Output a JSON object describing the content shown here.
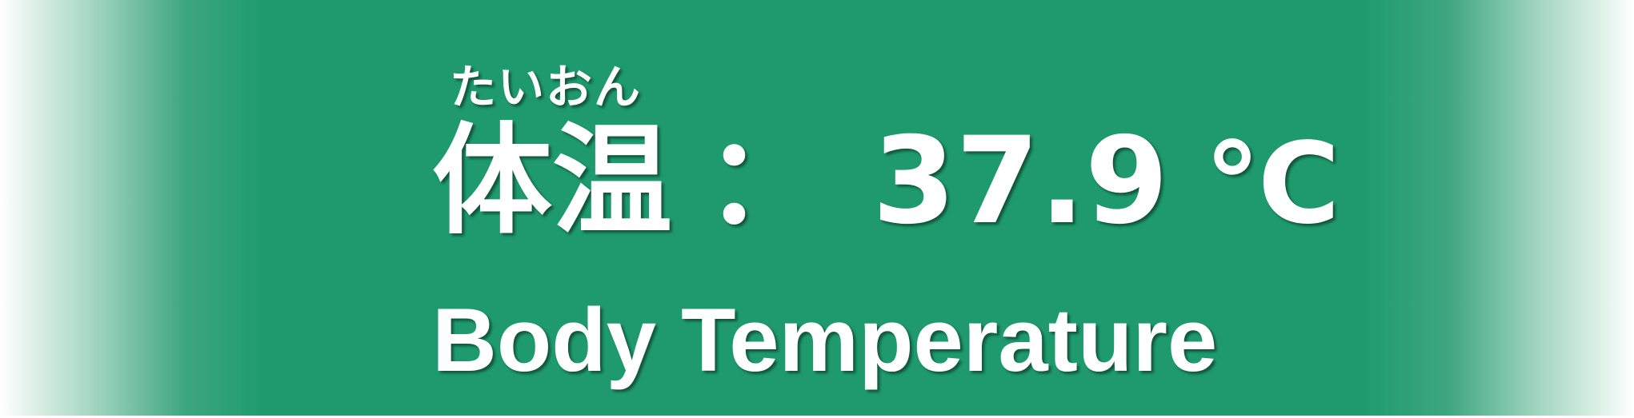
{
  "ruby": "たいおん",
  "label_jp": "体温",
  "separator": "：",
  "temperature_value": "37.9",
  "temperature_unit": "℃",
  "label_en": "Body Temperature",
  "colors": {
    "background": "#1e9a6e",
    "text": "#ffffff"
  }
}
